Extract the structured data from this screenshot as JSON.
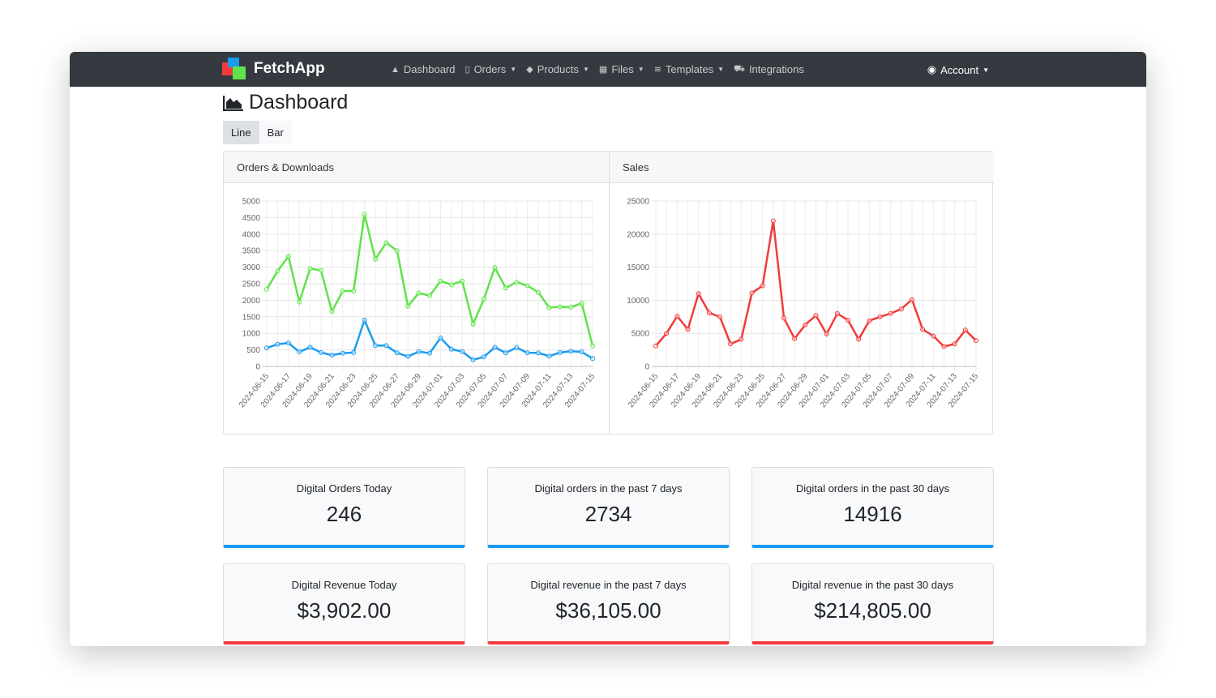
{
  "app": {
    "name": "FetchApp",
    "logo_colors": [
      "#f23a3a",
      "#1a9bf0",
      "#5fe34a"
    ]
  },
  "nav": {
    "items": [
      {
        "label": "Dashboard",
        "icon": "chart-area-icon",
        "dropdown": false
      },
      {
        "label": "Orders",
        "icon": "file-invoice-icon",
        "dropdown": true
      },
      {
        "label": "Products",
        "icon": "tags-icon",
        "dropdown": true
      },
      {
        "label": "Files",
        "icon": "boxes-icon",
        "dropdown": true
      },
      {
        "label": "Templates",
        "icon": "layers-icon",
        "dropdown": true
      },
      {
        "label": "Integrations",
        "icon": "cart-icon",
        "dropdown": false
      }
    ],
    "account": "Account"
  },
  "page": {
    "title": "Dashboard",
    "toggle": [
      "Line",
      "Bar"
    ],
    "active_toggle": "Line"
  },
  "chart_data": [
    {
      "type": "line",
      "title": "Orders & Downloads",
      "ylim": [
        0,
        5000
      ],
      "yticks": [
        0,
        500,
        1000,
        1500,
        2000,
        2500,
        3000,
        3500,
        4000,
        4500,
        5000
      ],
      "x": [
        "2024-06-15",
        "2024-06-16",
        "2024-06-17",
        "2024-06-18",
        "2024-06-19",
        "2024-06-20",
        "2024-06-21",
        "2024-06-22",
        "2024-06-23",
        "2024-06-24",
        "2024-06-25",
        "2024-06-26",
        "2024-06-27",
        "2024-06-28",
        "2024-06-29",
        "2024-06-30",
        "2024-07-01",
        "2024-07-02",
        "2024-07-03",
        "2024-07-04",
        "2024-07-05",
        "2024-07-06",
        "2024-07-07",
        "2024-07-08",
        "2024-07-09",
        "2024-07-10",
        "2024-07-11",
        "2024-07-12",
        "2024-07-13",
        "2024-07-14",
        "2024-07-15"
      ],
      "grid": true,
      "series": [
        {
          "color": "#5fe34a",
          "values": [
            2330,
            2880,
            3330,
            1950,
            2960,
            2900,
            1660,
            2280,
            2280,
            4600,
            3240,
            3740,
            3500,
            1820,
            2220,
            2140,
            2580,
            2470,
            2580,
            1280,
            2040,
            2990,
            2370,
            2550,
            2440,
            2240,
            1780,
            1800,
            1790,
            1910,
            620
          ]
        },
        {
          "color": "#1a9bf0",
          "values": [
            560,
            670,
            710,
            440,
            580,
            420,
            340,
            400,
            420,
            1400,
            630,
            630,
            410,
            300,
            450,
            400,
            860,
            520,
            450,
            200,
            290,
            580,
            410,
            570,
            410,
            410,
            310,
            420,
            460,
            440,
            240
          ]
        }
      ]
    },
    {
      "type": "line",
      "title": "Sales",
      "ylim": [
        0,
        25000
      ],
      "yticks": [
        0,
        5000,
        10000,
        15000,
        20000,
        25000
      ],
      "x": [
        "2024-06-15",
        "2024-06-16",
        "2024-06-17",
        "2024-06-18",
        "2024-06-19",
        "2024-06-20",
        "2024-06-21",
        "2024-06-22",
        "2024-06-23",
        "2024-06-24",
        "2024-06-25",
        "2024-06-26",
        "2024-06-27",
        "2024-06-28",
        "2024-06-29",
        "2024-06-30",
        "2024-07-01",
        "2024-07-02",
        "2024-07-03",
        "2024-07-04",
        "2024-07-05",
        "2024-07-06",
        "2024-07-07",
        "2024-07-08",
        "2024-07-09",
        "2024-07-10",
        "2024-07-11",
        "2024-07-12",
        "2024-07-13",
        "2024-07-14",
        "2024-07-15"
      ],
      "grid": true,
      "series": [
        {
          "color": "#f23a3a",
          "values": [
            3100,
            5000,
            7600,
            5600,
            11000,
            8100,
            7500,
            3400,
            4100,
            11100,
            12200,
            22000,
            7300,
            4200,
            6300,
            7700,
            4900,
            8000,
            7000,
            4100,
            6900,
            7500,
            8000,
            8700,
            10100,
            5600,
            4600,
            3000,
            3400,
            5500,
            3900
          ]
        }
      ]
    }
  ],
  "stats": [
    {
      "label": "Digital Orders Today",
      "value": "246",
      "color": "blue"
    },
    {
      "label": "Digital orders in the past 7 days",
      "value": "2734",
      "color": "blue"
    },
    {
      "label": "Digital orders in the past 30 days",
      "value": "14916",
      "color": "blue"
    },
    {
      "label": "Digital Revenue Today",
      "value": "$3,902.00",
      "color": "red"
    },
    {
      "label": "Digital revenue in the past 7 days",
      "value": "$36,105.00",
      "color": "red"
    },
    {
      "label": "Digital revenue in the past 30 days",
      "value": "$214,805.00",
      "color": "red"
    }
  ]
}
